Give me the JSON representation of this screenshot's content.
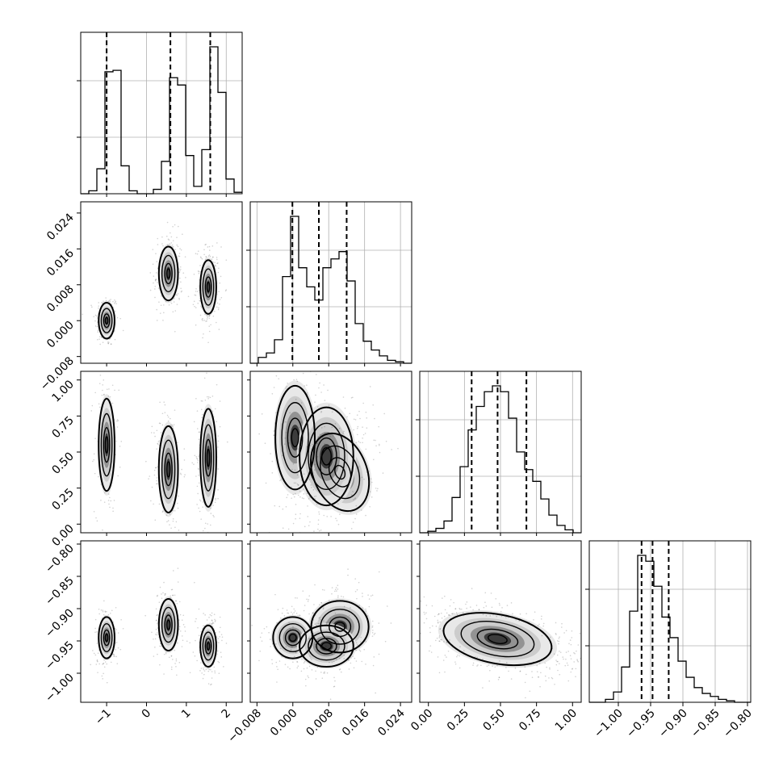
{
  "chart_data": {
    "type": "corner",
    "n_params": 4,
    "colors": {
      "hist_line": "#000000",
      "quantile_line": "#000000",
      "grid": "#b0b0b0",
      "contour": "#000000",
      "scatter": "#000000"
    },
    "params": [
      {
        "range": [
          -1.65,
          2.4
        ],
        "ticks": [
          -1,
          0,
          1,
          2
        ],
        "tick_labels": [
          "−1",
          "0",
          "1",
          "2"
        ],
        "quantiles": [
          -1.0,
          0.6,
          1.6
        ]
      },
      {
        "range": [
          -0.0095,
          0.0265
        ],
        "ticks": [
          -0.008,
          0.0,
          0.008,
          0.016,
          0.024
        ],
        "tick_labels": [
          "−0.008",
          "0.000",
          "0.008",
          "0.016",
          "0.024"
        ],
        "quantiles": [
          -0.0001,
          0.0058,
          0.012
        ]
      },
      {
        "range": [
          -0.06,
          1.06
        ],
        "ticks": [
          0.0,
          0.25,
          0.5,
          0.75,
          1.0
        ],
        "tick_labels": [
          "0.00",
          "0.25",
          "0.50",
          "0.75",
          "1.00"
        ],
        "quantiles": [
          0.3,
          0.48,
          0.68
        ]
      },
      {
        "range": [
          -1.045,
          -0.795
        ],
        "ticks": [
          -1.0,
          -0.95,
          -0.9,
          -0.85,
          -0.8
        ],
        "tick_labels": [
          "−1.00",
          "−0.95",
          "−0.90",
          "−0.85",
          "−0.80"
        ],
        "quantiles": [
          -0.964,
          -0.947,
          -0.922
        ]
      }
    ],
    "histograms": [
      {
        "param": 0,
        "bin_edges": [
          -1.65,
          -1.4475,
          -1.245,
          -1.0425,
          -0.84,
          -0.6375,
          -0.435,
          -0.2325,
          -0.03,
          0.1725,
          0.375,
          0.5775,
          0.78,
          0.9825,
          1.185,
          1.3875,
          1.59,
          1.7925,
          1.995,
          2.1975,
          2.4
        ],
        "counts": [
          0,
          0.02,
          0.17,
          0.83,
          0.84,
          0.19,
          0.02,
          0,
          0,
          0.03,
          0.22,
          0.79,
          0.74,
          0.26,
          0.05,
          0.3,
          1.0,
          0.69,
          0.1,
          0.01
        ]
      },
      {
        "param": 1,
        "bin_edges": [
          -0.0095,
          -0.0077,
          -0.0059,
          -0.0041,
          -0.0023,
          -0.0005,
          0.0013,
          0.0031,
          0.0049,
          0.0067,
          0.0085,
          0.0103,
          0.0121,
          0.0139,
          0.0157,
          0.0175,
          0.0193,
          0.0211,
          0.0229,
          0.0247,
          0.0265
        ],
        "counts": [
          0,
          0.04,
          0.07,
          0.16,
          0.59,
          1.0,
          0.65,
          0.52,
          0.43,
          0.65,
          0.71,
          0.76,
          0.56,
          0.27,
          0.15,
          0.09,
          0.05,
          0.02,
          0.01,
          0
        ]
      },
      {
        "param": 2,
        "bin_edges": [
          -0.06,
          -0.004,
          0.052,
          0.108,
          0.164,
          0.22,
          0.276,
          0.332,
          0.388,
          0.444,
          0.5,
          0.556,
          0.612,
          0.668,
          0.724,
          0.78,
          0.836,
          0.892,
          0.948,
          1.004,
          1.06
        ],
        "counts": [
          0,
          0.01,
          0.03,
          0.08,
          0.24,
          0.45,
          0.7,
          0.86,
          0.96,
          1.0,
          0.96,
          0.78,
          0.55,
          0.43,
          0.35,
          0.23,
          0.12,
          0.05,
          0.02,
          0
        ]
      },
      {
        "param": 3,
        "bin_edges": [
          -1.045,
          -1.0325,
          -1.02,
          -1.0075,
          -0.995,
          -0.9825,
          -0.97,
          -0.9575,
          -0.945,
          -0.9325,
          -0.92,
          -0.9075,
          -0.895,
          -0.8825,
          -0.87,
          -0.8575,
          -0.845,
          -0.8325,
          -0.82,
          -0.8075,
          -0.795
        ],
        "counts": [
          0,
          0,
          0.02,
          0.07,
          0.24,
          0.62,
          1.0,
          0.96,
          0.79,
          0.58,
          0.44,
          0.28,
          0.17,
          0.1,
          0.06,
          0.04,
          0.02,
          0.01,
          0,
          0
        ]
      }
    ],
    "clusters": [
      {
        "p0": -1.0,
        "s0": 0.1,
        "p1": 0.0,
        "s1": 0.002,
        "p2": 0.55,
        "s2": 0.16,
        "p3": -0.945,
        "s3": 0.016,
        "weight": 0.3
      },
      {
        "p0": 0.55,
        "s0": 0.12,
        "p1": 0.0105,
        "s1": 0.003,
        "p2": 0.38,
        "s2": 0.15,
        "p3": -0.925,
        "s3": 0.02,
        "weight": 0.34
      },
      {
        "p0": 1.55,
        "s0": 0.1,
        "p1": 0.0075,
        "s1": 0.003,
        "p2": 0.46,
        "s2": 0.17,
        "p3": -0.958,
        "s3": 0.016,
        "weight": 0.36
      }
    ]
  }
}
